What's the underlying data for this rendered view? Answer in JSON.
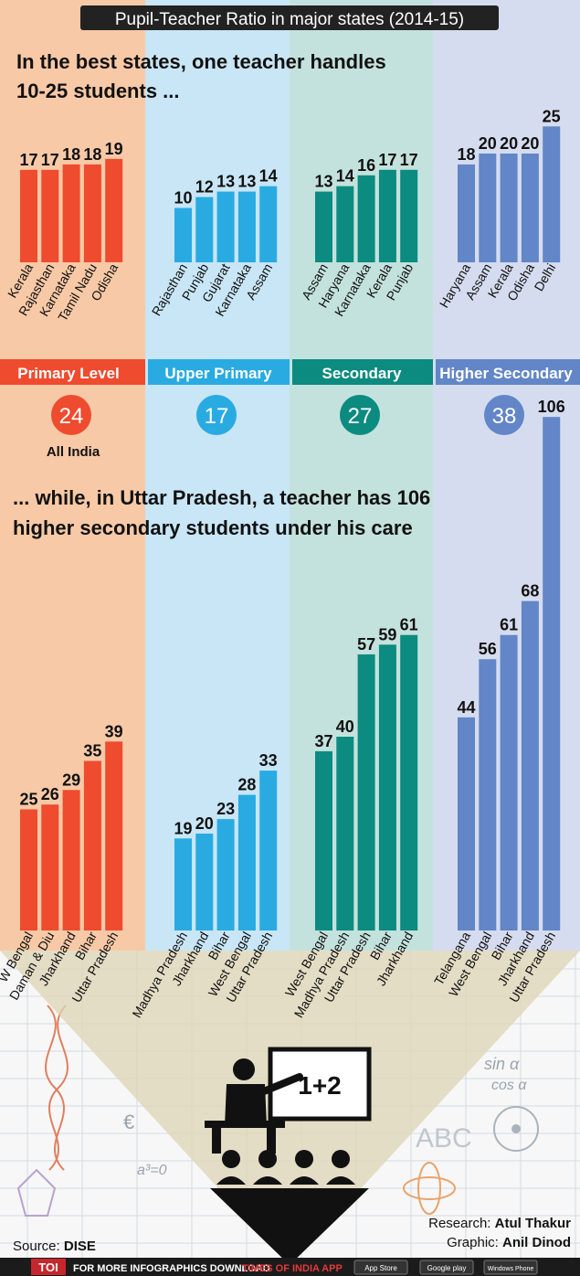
{
  "title": "Pupil-Teacher Ratio in major states (2014-15)",
  "headline_top": [
    "In the best states, one teacher handles",
    "10-25 students ..."
  ],
  "headline_mid": [
    "... while, in Uttar Pradesh, a teacher has 106",
    "higher secondary students under his care"
  ],
  "levels": [
    {
      "name": "Primary Level",
      "all_india": "24",
      "color": "#ee4b2f",
      "bg": "#f8c9a6"
    },
    {
      "name": "Upper Primary",
      "all_india": "17",
      "color": "#29abe2",
      "bg": "#c8e6f6"
    },
    {
      "name": "Secondary",
      "all_india": "27",
      "color": "#0c8b80",
      "bg": "#c4e2dd"
    },
    {
      "name": "Higher Secondary",
      "all_india": "38",
      "color": "#6286c7",
      "bg": "#d6dcef"
    }
  ],
  "all_india_label": "All India",
  "chart_data": [
    {
      "type": "bar",
      "level": "Primary Level",
      "group": "best",
      "categories": [
        "Kerala",
        "Rajasthan",
        "Karnataka",
        "Tamil Nadu",
        "Odisha"
      ],
      "values": [
        17,
        17,
        18,
        18,
        19
      ]
    },
    {
      "type": "bar",
      "level": "Upper Primary",
      "group": "best",
      "categories": [
        "Rajasthan",
        "Punjab",
        "Gujarat",
        "Karnataka",
        "Assam"
      ],
      "values": [
        10,
        12,
        13,
        13,
        14
      ]
    },
    {
      "type": "bar",
      "level": "Secondary",
      "group": "best",
      "categories": [
        "Assam",
        "Haryana",
        "Karnataka",
        "Kerala",
        "Punjab"
      ],
      "values": [
        13,
        14,
        16,
        17,
        17
      ]
    },
    {
      "type": "bar",
      "level": "Higher Secondary",
      "group": "best",
      "categories": [
        "Haryana",
        "Assam",
        "Kerala",
        "Odisha",
        "Delhi"
      ],
      "values": [
        18,
        20,
        20,
        20,
        25
      ]
    },
    {
      "type": "bar",
      "level": "Primary Level",
      "group": "worst",
      "categories": [
        "W Bengal",
        "Daman & Diu",
        "Jharkhand",
        "Bihar",
        "Uttar Pradesh"
      ],
      "values": [
        25,
        26,
        29,
        35,
        39
      ]
    },
    {
      "type": "bar",
      "level": "Upper Primary",
      "group": "worst",
      "categories": [
        "Madhya Pradesh",
        "Jharkhand",
        "Bihar",
        "West Bengal",
        "Uttar Pradesh"
      ],
      "values": [
        19,
        20,
        23,
        28,
        33
      ]
    },
    {
      "type": "bar",
      "level": "Secondary",
      "group": "worst",
      "categories": [
        "West Bengal",
        "Madhya Pradesh",
        "Uttar Pradesh",
        "Bihar",
        "Jharkhand"
      ],
      "values": [
        37,
        40,
        57,
        59,
        61
      ]
    },
    {
      "type": "bar",
      "level": "Higher Secondary",
      "group": "worst",
      "categories": [
        "Telangana",
        "West Bengal",
        "Bihar",
        "Jharkhand",
        "Uttar Pradesh"
      ],
      "values": [
        44,
        56,
        61,
        68,
        106
      ]
    }
  ],
  "board_text": "1+2",
  "credits": {
    "research_label": "Research:",
    "research_name": "Atul Thakur",
    "graphic_label": "Graphic:",
    "graphic_name": "Anil Dinod"
  },
  "source": {
    "label": "Source:",
    "name": "DISE"
  },
  "footer": {
    "logo": "TOI",
    "text_a": "FOR MORE INFOGRAPHICS DOWNLOAD",
    "text_b": "TIMES OF INDIA APP",
    "badges": [
      "App Store",
      "Google play",
      "Windows Phone"
    ]
  }
}
